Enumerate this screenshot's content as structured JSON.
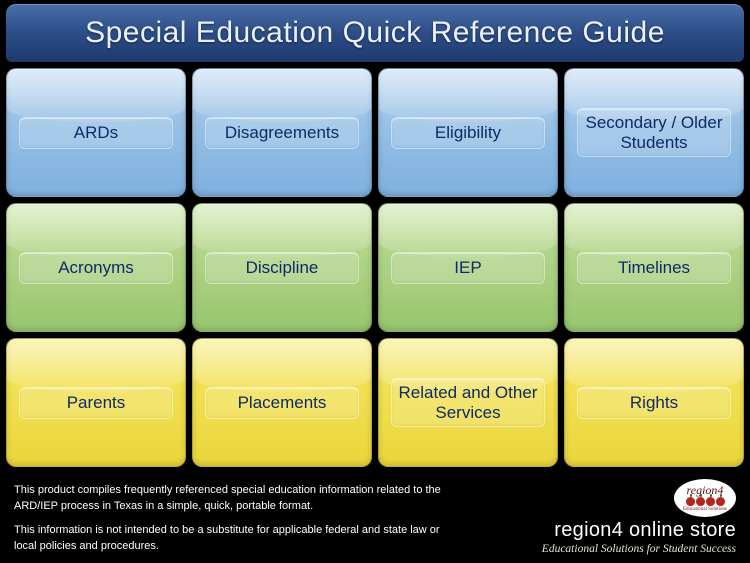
{
  "title": "Special Education Quick Reference Guide",
  "rows": [
    {
      "colorClass": "row-blue",
      "tiles": [
        "ARDs",
        "Disagreements",
        "Eligibility",
        "Secondary / Older Students"
      ]
    },
    {
      "colorClass": "row-green",
      "tiles": [
        "Acronyms",
        "Discipline",
        "IEP",
        "Timelines"
      ]
    },
    {
      "colorClass": "row-yellow",
      "tiles": [
        "Parents",
        "Placements",
        "Related and Other Services",
        "Rights"
      ]
    }
  ],
  "footer": {
    "p1": "This product compiles frequently referenced special education information related to the ARD/IEP process in Texas in a simple, quick, portable format.",
    "p2": "This information is not intended to be a substitute for applicable federal and state law or local policies and procedures."
  },
  "brand": {
    "logoTop": "region4",
    "logoBottom": "Educational Solutions",
    "storePrefix": "region",
    "storeNum": "4",
    "storeSuffix": " online store",
    "tagline": "Educational Solutions for Student Success"
  },
  "colors": {
    "titleText": "#eaf1fb",
    "labelText": "#0f2a66",
    "taglineText": "#e9e2c8"
  }
}
